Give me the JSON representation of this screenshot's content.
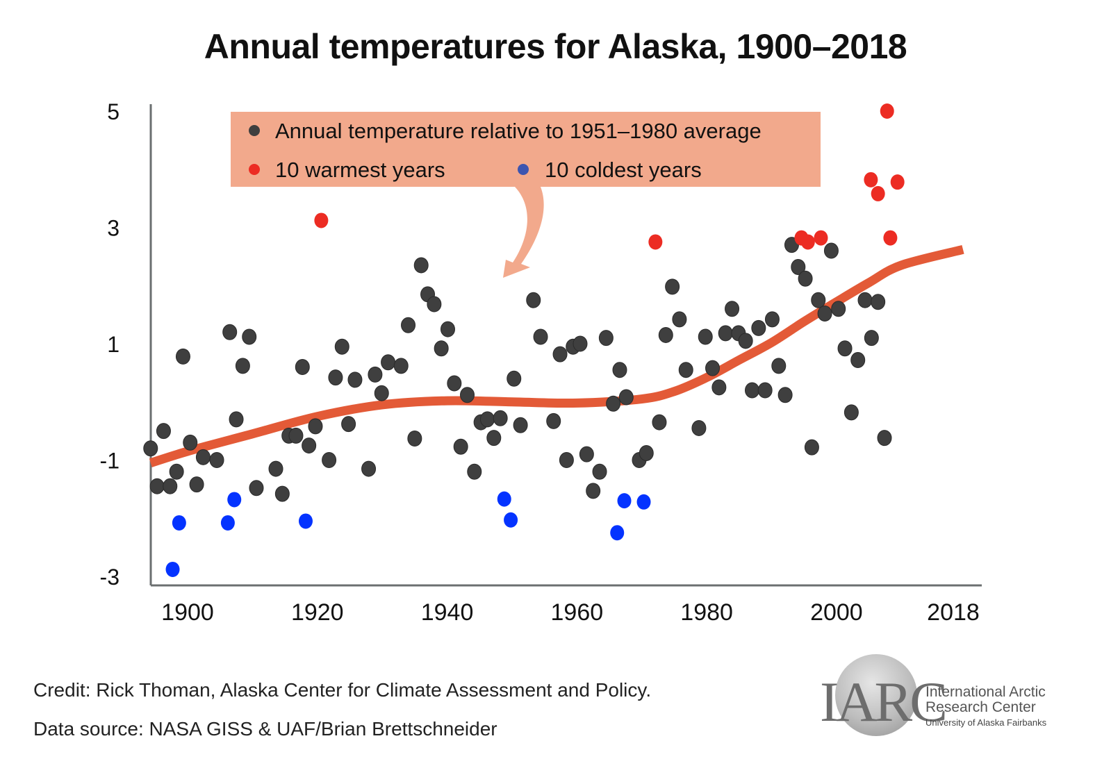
{
  "title": "Annual temperatures for Alaska, 1900–2018",
  "legend": {
    "annual": "Annual temperature relative to 1951–1980 average",
    "warmest": "10 warmest years",
    "coldest": "10 coldest years"
  },
  "colors": {
    "normal": "#3f3f3f",
    "warm": "#ec2c23",
    "cold": "#0433ff",
    "legend_cold_marker": "#3d55b0",
    "trend": "#e35a37",
    "legend_bg": "#f2a98c",
    "axis": "#6b6f70"
  },
  "footer": {
    "credit": "Credit: Rick Thoman, Alaska Center for Climate Assessment and Policy.",
    "source": "Data source: NASA GISS & UAF/Brian Brettschneider"
  },
  "logo": {
    "letters": "IARC",
    "name_line1": "International Arctic",
    "name_line2": "Research Center",
    "subtitle": "University of Alaska Fairbanks"
  },
  "chart_data": {
    "type": "scatter",
    "title": "Annual temperatures for Alaska, 1900–2018",
    "xlabel": "",
    "ylabel": "",
    "xlim": [
      1894.3,
      2019.5
    ],
    "ylim": [
      -3.1,
      5.1
    ],
    "xticks": [
      1900,
      1920,
      1940,
      1960,
      1980,
      2000,
      2018
    ],
    "yticks": [
      5,
      3,
      1,
      -1,
      -3
    ],
    "grid": false,
    "legend_position": "top-center",
    "series": [
      {
        "name": "Annual temperature relative to 1951–1980 average",
        "kind": "normal",
        "points": [
          [
            1894.3,
            -0.8
          ],
          [
            1895.3,
            -1.45
          ],
          [
            1896.3,
            -0.5
          ],
          [
            1897.3,
            -1.45
          ],
          [
            1898.3,
            -1.2
          ],
          [
            1899.3,
            0.78
          ],
          [
            1900.4,
            -0.7
          ],
          [
            1901.4,
            -1.42
          ],
          [
            1902.4,
            -0.95
          ],
          [
            1904.5,
            -1.0
          ],
          [
            1906.5,
            1.2
          ],
          [
            1907.5,
            -0.3
          ],
          [
            1908.5,
            0.62
          ],
          [
            1909.5,
            1.12
          ],
          [
            1910.6,
            -1.48
          ],
          [
            1913.6,
            -1.15
          ],
          [
            1914.6,
            -1.58
          ],
          [
            1915.6,
            -0.58
          ],
          [
            1916.7,
            -0.58
          ],
          [
            1917.7,
            0.6
          ],
          [
            1918.7,
            -0.75
          ],
          [
            1919.7,
            -0.42
          ],
          [
            1921.8,
            -1.0
          ],
          [
            1922.8,
            0.42
          ],
          [
            1923.8,
            0.95
          ],
          [
            1924.8,
            -0.38
          ],
          [
            1925.8,
            0.38
          ],
          [
            1927.9,
            -1.15
          ],
          [
            1928.9,
            0.47
          ],
          [
            1929.9,
            0.15
          ],
          [
            1930.9,
            0.68
          ],
          [
            1932.9,
            0.62
          ],
          [
            1934.0,
            1.32
          ],
          [
            1935.0,
            -0.63
          ],
          [
            1936.0,
            2.35
          ],
          [
            1937.0,
            1.85
          ],
          [
            1938.0,
            1.68
          ],
          [
            1939.1,
            0.92
          ],
          [
            1940.1,
            1.25
          ],
          [
            1941.1,
            0.32
          ],
          [
            1942.1,
            -0.77
          ],
          [
            1943.1,
            0.12
          ],
          [
            1944.2,
            -1.2
          ],
          [
            1945.2,
            -0.35
          ],
          [
            1946.2,
            -0.3
          ],
          [
            1947.2,
            -0.62
          ],
          [
            1948.2,
            -0.28
          ],
          [
            1950.3,
            0.4
          ],
          [
            1951.3,
            -0.4
          ],
          [
            1953.3,
            1.75
          ],
          [
            1954.4,
            1.12
          ],
          [
            1956.4,
            -0.33
          ],
          [
            1957.4,
            0.82
          ],
          [
            1958.4,
            -1.0
          ],
          [
            1959.4,
            0.95
          ],
          [
            1960.5,
            1.0
          ],
          [
            1961.5,
            -0.9
          ],
          [
            1962.5,
            -1.53
          ],
          [
            1963.5,
            -1.2
          ],
          [
            1964.5,
            1.1
          ],
          [
            1965.6,
            -0.03
          ],
          [
            1966.6,
            0.55
          ],
          [
            1967.6,
            0.08
          ],
          [
            1969.6,
            -1.0
          ],
          [
            1970.7,
            -0.88
          ],
          [
            1972.7,
            -0.35
          ],
          [
            1973.7,
            1.15
          ],
          [
            1974.7,
            1.98
          ],
          [
            1975.8,
            1.42
          ],
          [
            1976.8,
            0.55
          ],
          [
            1978.8,
            -0.45
          ],
          [
            1979.8,
            1.12
          ],
          [
            1980.9,
            0.58
          ],
          [
            1981.9,
            0.25
          ],
          [
            1982.9,
            1.18
          ],
          [
            1983.9,
            1.6
          ],
          [
            1984.9,
            1.18
          ],
          [
            1986.0,
            1.05
          ],
          [
            1987.0,
            0.2
          ],
          [
            1988.0,
            1.27
          ],
          [
            1989.0,
            0.2
          ],
          [
            1990.1,
            1.42
          ],
          [
            1991.1,
            0.62
          ],
          [
            1992.1,
            0.12
          ],
          [
            1993.1,
            2.7
          ],
          [
            1994.1,
            2.32
          ],
          [
            1995.2,
            2.12
          ],
          [
            1996.2,
            -0.78
          ],
          [
            1997.2,
            1.75
          ],
          [
            1998.2,
            1.52
          ],
          [
            1999.2,
            2.6
          ],
          [
            2000.3,
            1.6
          ],
          [
            2001.3,
            0.92
          ],
          [
            2002.3,
            -0.18
          ],
          [
            2003.3,
            0.72
          ],
          [
            2004.4,
            1.75
          ],
          [
            2005.4,
            1.1
          ],
          [
            2006.4,
            1.72
          ],
          [
            2007.4,
            -0.62
          ]
        ]
      },
      {
        "name": "10 warmest years",
        "kind": "warm",
        "points": [
          [
            1920.6,
            3.12
          ],
          [
            1972.1,
            2.75
          ],
          [
            1994.6,
            2.82
          ],
          [
            1995.6,
            2.75
          ],
          [
            1997.6,
            2.82
          ],
          [
            2007.8,
            5.0
          ],
          [
            2005.3,
            3.82
          ],
          [
            2006.4,
            3.58
          ],
          [
            2009.4,
            3.78
          ],
          [
            2008.3,
            2.82
          ]
        ]
      },
      {
        "name": "10 coldest years",
        "kind": "cold",
        "points": [
          [
            1898.7,
            -2.08
          ],
          [
            1897.7,
            -2.88
          ],
          [
            1906.2,
            -2.08
          ],
          [
            1907.2,
            -1.68
          ],
          [
            1918.2,
            -2.05
          ],
          [
            1948.8,
            -1.67
          ],
          [
            1949.8,
            -2.03
          ],
          [
            1966.2,
            -2.25
          ],
          [
            1967.3,
            -1.7
          ],
          [
            1970.3,
            -1.72
          ]
        ]
      },
      {
        "name": "Trend",
        "kind": "trend",
        "type": "line",
        "points": [
          [
            1894.3,
            -1.05
          ],
          [
            1900,
            -0.85
          ],
          [
            1910,
            -0.55
          ],
          [
            1920,
            -0.25
          ],
          [
            1930,
            -0.05
          ],
          [
            1940,
            0.02
          ],
          [
            1950,
            0.0
          ],
          [
            1960,
            -0.02
          ],
          [
            1970,
            0.05
          ],
          [
            1975,
            0.18
          ],
          [
            1980,
            0.42
          ],
          [
            1985,
            0.72
          ],
          [
            1990,
            1.02
          ],
          [
            1995,
            1.38
          ],
          [
            2000,
            1.72
          ],
          [
            2005,
            2.05
          ],
          [
            2010,
            2.35
          ],
          [
            2019.5,
            2.62
          ]
        ]
      }
    ]
  }
}
